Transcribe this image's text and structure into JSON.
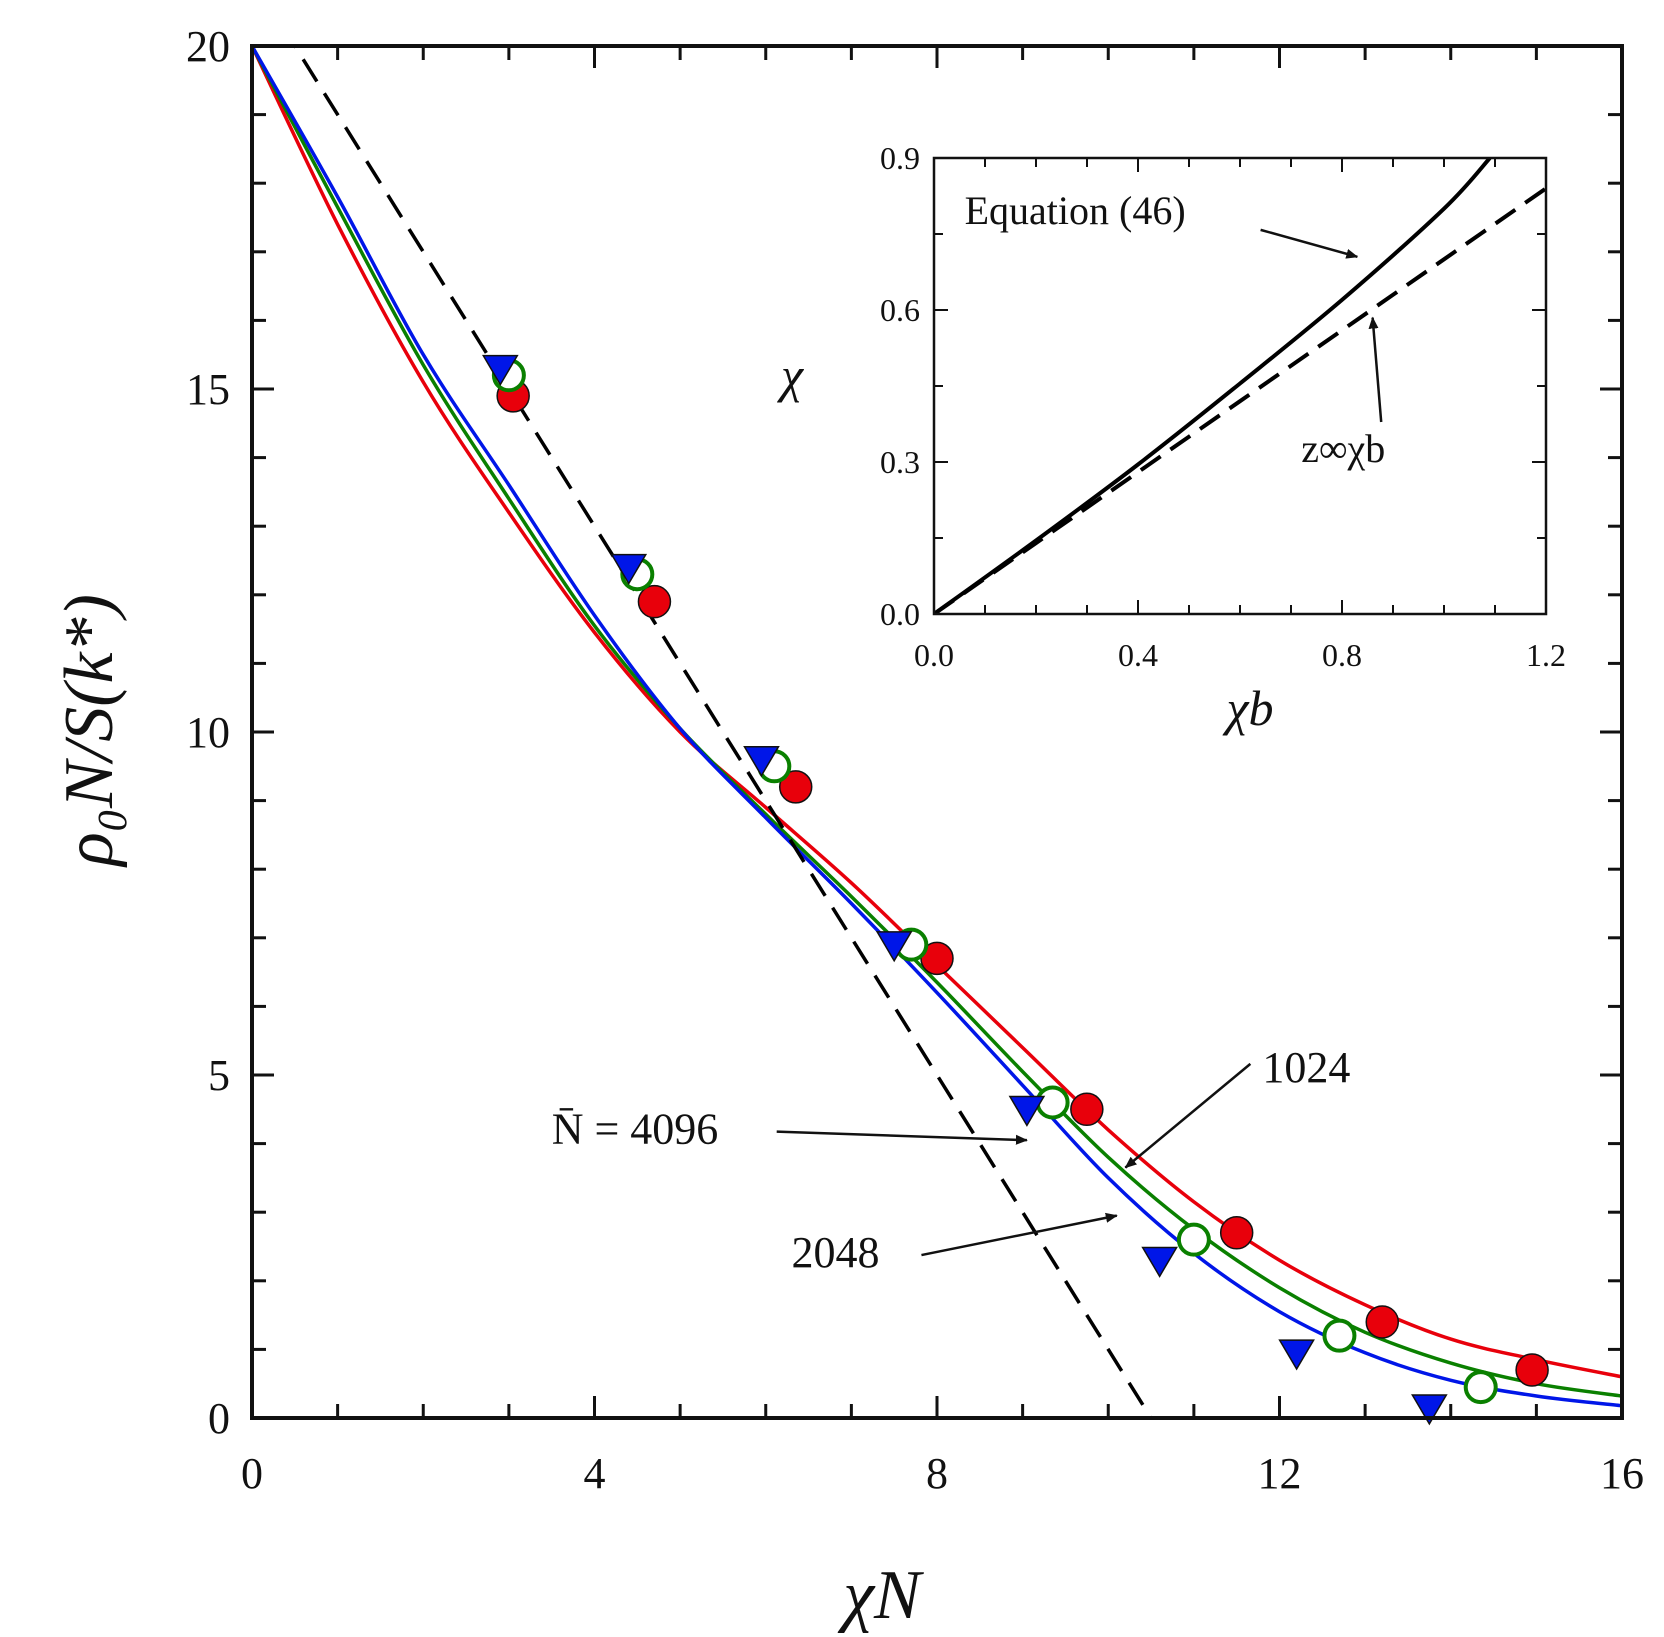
{
  "chart_data": [
    {
      "type": "line",
      "role": "main",
      "xlabel": "χN",
      "ylabel": "ρ₀N/S(k*)",
      "xlim": [
        0,
        16
      ],
      "ylim": [
        0,
        20
      ],
      "xticks": [
        0,
        4,
        8,
        12,
        16
      ],
      "yticks": [
        0,
        5,
        10,
        15,
        20
      ],
      "xtick_labels": [
        "0",
        "4",
        "8",
        "12",
        "16"
      ],
      "ytick_labels": [
        "0",
        "5",
        "10",
        "15",
        "20"
      ],
      "grid": false,
      "series": [
        {
          "color": "#e8000b",
          "marker": "filled-circle",
          "curve_x": [
            0,
            1,
            2,
            3,
            4,
            5,
            6,
            7,
            8,
            9,
            10,
            11,
            12,
            13,
            14,
            15,
            16
          ],
          "curve_y": [
            20.0,
            17.4,
            15.1,
            13.2,
            11.45,
            10.0,
            8.9,
            7.8,
            6.6,
            5.4,
            4.2,
            3.15,
            2.3,
            1.65,
            1.15,
            0.85,
            0.6
          ],
          "points_x": [
            3.05,
            4.7,
            6.35,
            8.0,
            9.75,
            11.5,
            13.2,
            14.95
          ],
          "points_y": [
            14.9,
            11.9,
            9.2,
            6.7,
            4.5,
            2.7,
            1.4,
            0.7
          ]
        },
        {
          "color": "#0a8000",
          "marker": "open-circle",
          "curve_x": [
            0,
            1,
            2,
            3,
            4,
            5,
            6,
            7,
            8,
            9,
            10,
            11,
            12,
            13,
            14,
            15,
            16
          ],
          "curve_y": [
            20.0,
            17.65,
            15.35,
            13.4,
            11.55,
            10.05,
            8.8,
            7.6,
            6.35,
            5.05,
            3.8,
            2.75,
            1.9,
            1.25,
            0.8,
            0.5,
            0.32
          ],
          "points_x": [
            3.0,
            4.5,
            6.1,
            7.7,
            9.35,
            11.0,
            12.7,
            14.35
          ],
          "points_y": [
            15.2,
            12.3,
            9.5,
            6.9,
            4.6,
            2.6,
            1.2,
            0.45
          ]
        },
        {
          "color": "#0016e8",
          "marker": "filled-triangle-down",
          "curve_x": [
            0,
            1,
            2,
            3,
            4,
            5,
            6,
            7,
            8,
            9,
            10,
            11,
            12,
            13,
            14,
            15,
            16
          ],
          "curve_y": [
            20.0,
            17.8,
            15.5,
            13.6,
            11.7,
            10.05,
            8.75,
            7.5,
            6.2,
            4.85,
            3.5,
            2.4,
            1.55,
            0.95,
            0.55,
            0.32,
            0.18
          ],
          "points_x": [
            2.9,
            4.4,
            5.95,
            7.5,
            9.05,
            10.6,
            12.2,
            13.75
          ],
          "points_y": [
            15.3,
            12.4,
            9.6,
            6.9,
            4.5,
            2.3,
            0.95,
            0.15
          ]
        },
        {
          "color": "#000000",
          "dash": true,
          "curve_x": [
            0.35,
            10.5
          ],
          "curve_y": [
            20.3,
            0.0
          ]
        }
      ],
      "annotations": [
        {
          "text": "N̄ = 4096",
          "text_x": 3.5,
          "text_y": 4.0,
          "arrow_to_x": 9.05,
          "arrow_to_y": 4.05
        },
        {
          "text": "1024",
          "text_x": 11.8,
          "text_y": 4.9,
          "arrow_to_x": 10.2,
          "arrow_to_y": 3.65
        },
        {
          "text": "2048",
          "text_x": 6.3,
          "text_y": 2.2,
          "arrow_to_x": 10.1,
          "arrow_to_y": 2.95
        }
      ]
    },
    {
      "type": "line",
      "role": "inset",
      "xlabel": "χb",
      "ylabel": "χ",
      "xlim": [
        0,
        1.2
      ],
      "ylim": [
        0,
        0.9
      ],
      "xticks": [
        0,
        0.4,
        0.8,
        1.2
      ],
      "yticks": [
        0,
        0.3,
        0.6,
        0.9
      ],
      "xtick_labels": [
        "0.0",
        "0.4",
        "0.8",
        "1.2"
      ],
      "ytick_labels": [
        "0.0",
        "0.3",
        "0.6",
        "0.9"
      ],
      "grid": false,
      "series": [
        {
          "color": "#000000",
          "dash": false,
          "x": [
            0.0,
            0.2,
            0.4,
            0.6,
            0.8,
            1.0,
            1.09
          ],
          "y": [
            0.0,
            0.145,
            0.295,
            0.455,
            0.62,
            0.8,
            0.9
          ]
        },
        {
          "color": "#000000",
          "dash": true,
          "x": [
            0.0,
            0.2,
            0.4,
            0.6,
            0.8,
            1.0,
            1.2
          ],
          "y": [
            0.0,
            0.14,
            0.28,
            0.42,
            0.56,
            0.7,
            0.84
          ]
        }
      ],
      "annotations": [
        {
          "text": "Equation (46)",
          "text_x": 0.06,
          "text_y": 0.77,
          "arrow_to_x": 0.83,
          "arrow_to_y": 0.705
        },
        {
          "text": "z∞χb",
          "text_x": 0.72,
          "text_y": 0.3,
          "arrow_to_x": 0.86,
          "arrow_to_y": 0.585
        }
      ]
    }
  ]
}
